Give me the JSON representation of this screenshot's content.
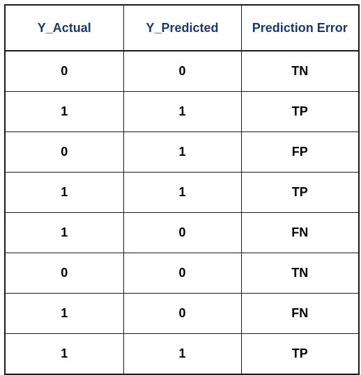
{
  "table": {
    "headers": [
      "Y_Actual",
      "Y_Predicted",
      "Prediction Error"
    ],
    "rows": [
      [
        "0",
        "0",
        "TN"
      ],
      [
        "1",
        "1",
        "TP"
      ],
      [
        "0",
        "1",
        "FP"
      ],
      [
        "1",
        "1",
        "TP"
      ],
      [
        "1",
        "0",
        "FN"
      ],
      [
        "0",
        "0",
        "TN"
      ],
      [
        "1",
        "0",
        "FN"
      ],
      [
        "1",
        "1",
        "TP"
      ]
    ]
  },
  "colors": {
    "header_text": "#1f3864",
    "body_text": "#000000",
    "border": "#1a1a1a"
  }
}
